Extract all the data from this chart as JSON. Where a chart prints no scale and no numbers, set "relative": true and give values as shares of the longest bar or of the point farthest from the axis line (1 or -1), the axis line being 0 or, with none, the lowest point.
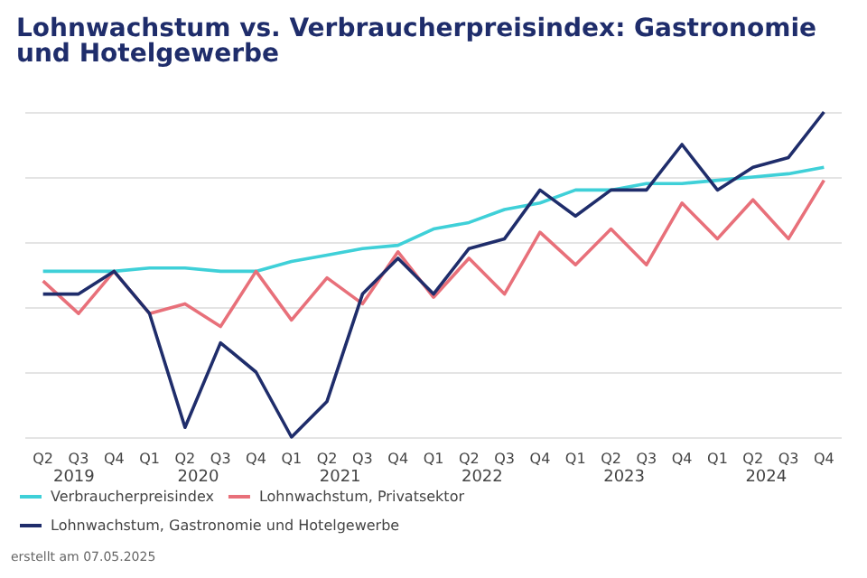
{
  "chart_data": {
    "type": "line",
    "title": "Lohnwachstum vs. Verbraucherpreisindex: Gastronomie und Hotelgewerbe",
    "categories": [
      "Q2",
      "Q3",
      "Q4",
      "Q1",
      "Q2",
      "Q3",
      "Q4",
      "Q1",
      "Q2",
      "Q3",
      "Q4",
      "Q1",
      "Q2",
      "Q3",
      "Q4",
      "Q1",
      "Q2",
      "Q3",
      "Q4",
      "Q1",
      "Q2",
      "Q3",
      "Q4"
    ],
    "relative": true,
    "grid": "y",
    "legend": "bottom left",
    "marker": "none",
    "line_style": "solid",
    "series": [
      {
        "name": "Verbraucherpreisindex",
        "color": "#3fd0d8",
        "values": [
          0.51,
          0.51,
          0.51,
          0.52,
          0.52,
          0.51,
          0.51,
          0.54,
          0.56,
          0.58,
          0.59,
          0.64,
          0.66,
          0.7,
          0.72,
          0.76,
          0.76,
          0.78,
          0.78,
          0.79,
          0.8,
          0.81,
          0.83
        ]
      },
      {
        "name": "Lohnwachstum, Privatsektor",
        "color": "#e8707a",
        "values": [
          0.48,
          0.38,
          0.51,
          0.38,
          0.41,
          0.34,
          0.51,
          0.36,
          0.49,
          0.41,
          0.57,
          0.43,
          0.55,
          0.44,
          0.63,
          0.53,
          0.64,
          0.53,
          0.72,
          0.61,
          0.73,
          0.61,
          0.79
        ]
      },
      {
        "name": "Lohnwachstum, Gastronomie und Hotelgewerbe",
        "color": "#1f2d6b",
        "values": [
          0.44,
          0.44,
          0.51,
          0.38,
          0.03,
          0.29,
          0.2,
          0,
          0.11,
          0.44,
          0.55,
          0.44,
          0.58,
          0.61,
          0.76,
          0.68,
          0.76,
          0.76,
          0.9,
          0.76,
          0.83,
          0.86,
          1
        ]
      }
    ],
    "annotations": [
      "2019",
      "2020",
      "2021",
      "2022",
      "2023",
      "2024",
      "erstellt am 07.05.2025"
    ]
  }
}
